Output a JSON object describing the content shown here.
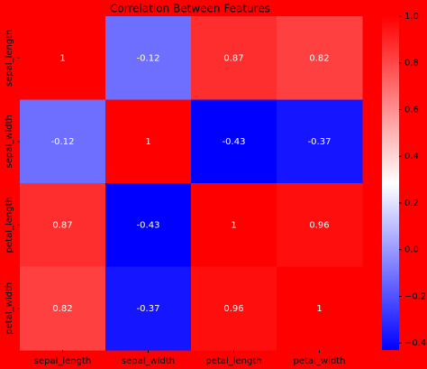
{
  "chart_data": {
    "type": "heatmap",
    "title": "Correlation Between Features",
    "x_categories": [
      "sepal_length",
      "sepal_width",
      "petal_length",
      "petal_width"
    ],
    "y_categories": [
      "sepal_length",
      "sepal_width",
      "petal_length",
      "petal_width"
    ],
    "values": [
      [
        1,
        -0.12,
        0.87,
        0.82
      ],
      [
        -0.12,
        1,
        -0.43,
        -0.37
      ],
      [
        0.87,
        -0.43,
        1,
        0.96
      ],
      [
        0.82,
        -0.37,
        0.96,
        1
      ]
    ],
    "colormap": "bwr",
    "background": "#ff0000",
    "clim": [
      -0.43,
      1
    ],
    "cticks": [
      {
        "value": -0.4,
        "label": "−0.4"
      },
      {
        "value": -0.2,
        "label": "−0.2"
      },
      {
        "value": 0,
        "label": "0.0"
      },
      {
        "value": 0.2,
        "label": "0.2"
      },
      {
        "value": 0.4,
        "label": "0.4"
      },
      {
        "value": 0.6,
        "label": "0.6"
      },
      {
        "value": 0.8,
        "label": "0.8"
      },
      {
        "value": 1,
        "label": "1.0"
      }
    ]
  }
}
